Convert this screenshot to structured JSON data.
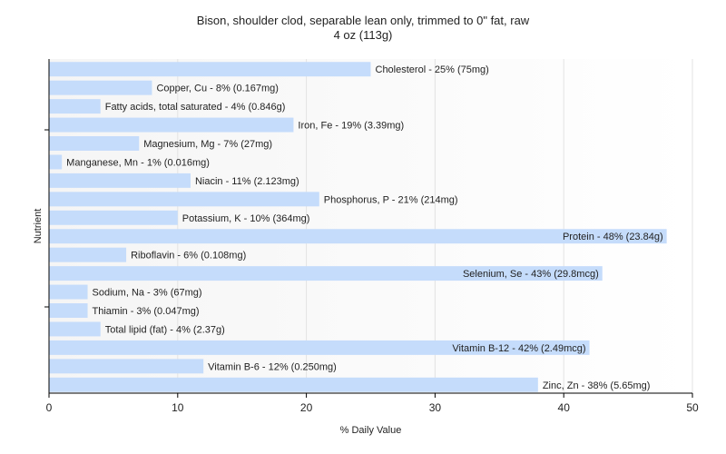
{
  "chart_data": {
    "type": "bar",
    "orientation": "horizontal",
    "title": "Bison, shoulder clod, separable lean only, trimmed to 0\" fat, raw",
    "subtitle": "4 oz (113g)",
    "xlabel": "% Daily Value",
    "ylabel": "Nutrient",
    "xlim": [
      0,
      50
    ],
    "xticks": [
      0,
      10,
      20,
      30,
      40,
      50
    ],
    "grid": true,
    "bar_color": "#c5dcfb",
    "categories": [
      "Cholesterol",
      "Copper, Cu",
      "Fatty acids, total saturated",
      "Iron, Fe",
      "Magnesium, Mg",
      "Manganese, Mn",
      "Niacin",
      "Phosphorus, P",
      "Potassium, K",
      "Protein",
      "Riboflavin",
      "Selenium, Se",
      "Sodium, Na",
      "Thiamin",
      "Total lipid (fat)",
      "Vitamin B-12",
      "Vitamin B-6",
      "Zinc, Zn"
    ],
    "values": [
      25,
      8,
      4,
      19,
      7,
      1,
      11,
      21,
      10,
      48,
      6,
      43,
      3,
      3,
      4,
      42,
      12,
      38
    ],
    "labels": [
      "Cholesterol - 25% (75mg)",
      "Copper, Cu - 8% (0.167mg)",
      "Fatty acids, total saturated - 4% (0.846g)",
      "Iron, Fe - 19% (3.39mg)",
      "Magnesium, Mg - 7% (27mg)",
      "Manganese, Mn - 1% (0.016mg)",
      "Niacin - 11% (2.123mg)",
      "Phosphorus, P - 21% (214mg)",
      "Potassium, K - 10% (364mg)",
      "Protein - 48% (23.84g)",
      "Riboflavin - 6% (0.108mg)",
      "Selenium, Se - 43% (29.8mcg)",
      "Sodium, Na - 3% (67mg)",
      "Thiamin - 3% (0.047mg)",
      "Total lipid (fat) - 4% (2.37g)",
      "Vitamin B-12 - 42% (2.49mcg)",
      "Vitamin B-6 - 12% (0.250mg)",
      "Zinc, Zn - 38% (5.65mg)"
    ]
  }
}
